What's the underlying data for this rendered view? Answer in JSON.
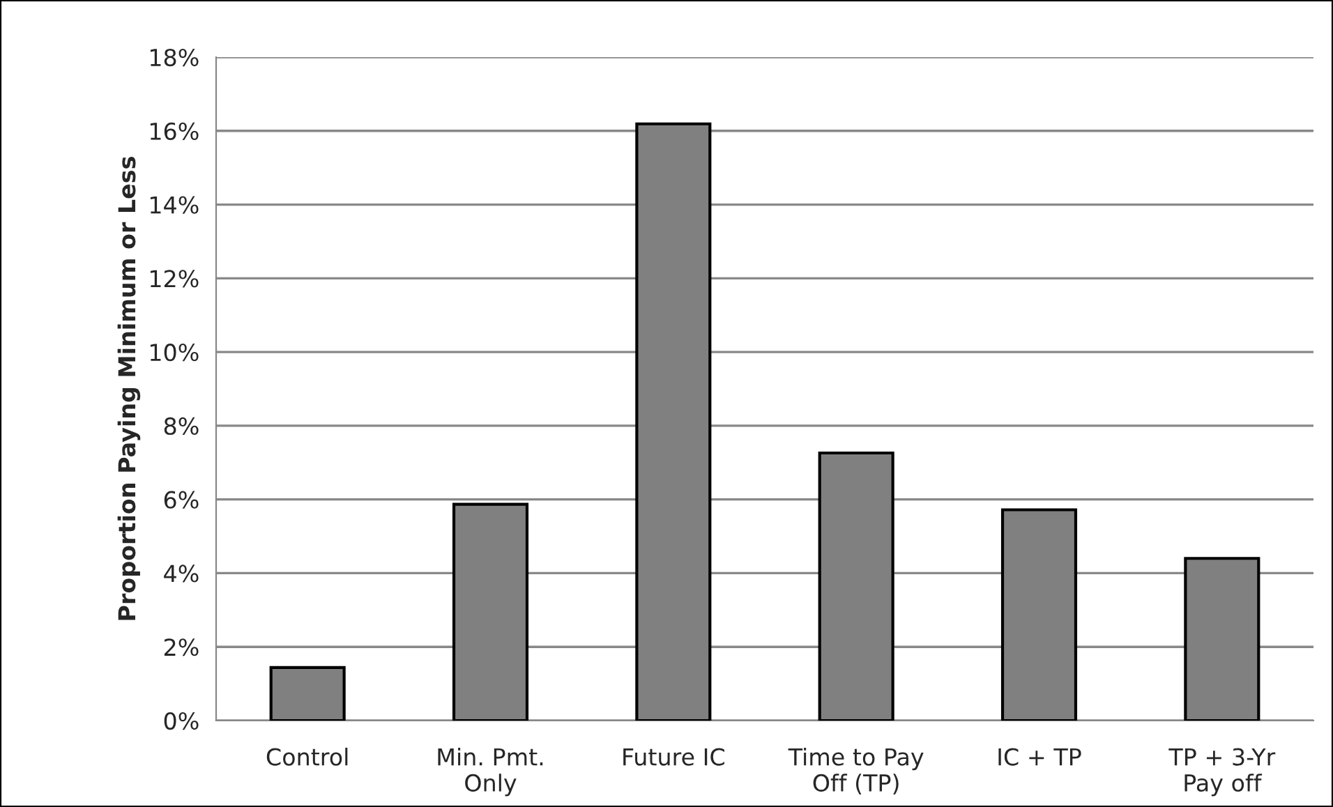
{
  "chart_data": {
    "type": "bar",
    "ylabel": "Proportion Paying Minimum or Less",
    "categories": [
      "Control",
      "Min. Pmt.\nOnly",
      "Future IC",
      "Time to Pay\nOff (TP)",
      "IC + TP",
      "TP + 3-Yr\nPay off"
    ],
    "values": [
      1.44,
      5.87,
      16.19,
      7.26,
      5.72,
      4.4
    ],
    "color": "#808080",
    "ylim": [
      0,
      18
    ],
    "yticks": [
      {
        "value": 0,
        "label": "0%"
      },
      {
        "value": 2,
        "label": "2%"
      },
      {
        "value": 4,
        "label": "4%"
      },
      {
        "value": 6,
        "label": "6%"
      },
      {
        "value": 8,
        "label": "8%"
      },
      {
        "value": 10,
        "label": "10%"
      },
      {
        "value": 12,
        "label": "12%"
      },
      {
        "value": 14,
        "label": "14%"
      },
      {
        "value": 16,
        "label": "16%"
      },
      {
        "value": 18,
        "label": "18%"
      }
    ],
    "grid": "y",
    "legend": false
  }
}
